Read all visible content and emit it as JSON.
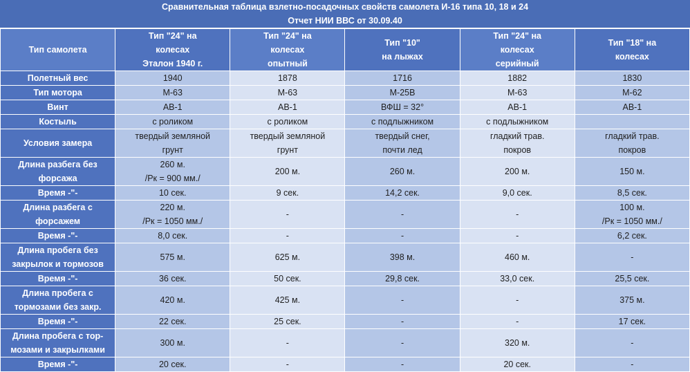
{
  "title": "Сравнительная таблица взлетно-посадочных свойств самолета И-16 типа 10, 18 и 24",
  "subtitle": "Отчет НИИ ВВС от 30.09.40",
  "table": {
    "header": [
      "Тип самолета",
      "Тип \"24\" на\nколесах\nЭталон 1940 г.",
      "Тип \"24\" на\nколесах\nопытный",
      "Тип \"10\"\nна лыжах",
      "Тип \"24\" на\nколесах\nсерийный",
      "Тип \"18\" на\nколесах"
    ],
    "rows": [
      [
        "Полетный вес",
        "1940",
        "1878",
        "1716",
        "1882",
        "1830"
      ],
      [
        "Тип мотора",
        "М-63",
        "М-63",
        "М-25В",
        "М-63",
        "М-62"
      ],
      [
        "Винт",
        "АВ-1",
        "АВ-1",
        "ВФШ = 32°",
        "АВ-1",
        "АВ-1"
      ],
      [
        "Костыль",
        "с роликом",
        "с роликом",
        "с подлыжником",
        "с подлыжником",
        null
      ],
      [
        "Условия замера",
        "твердый земляной\nгрунт",
        "твердый земляной\nгрунт",
        "твердый снег,\nпочти лед",
        "гладкий трав.\nпокров",
        "гладкий трав.\nпокров"
      ],
      [
        "Длина разбега без\nфорсажа",
        "260 м.\n/Рк = 900 мм./",
        "200 м.",
        "260 м.",
        "200 м.",
        "150 м."
      ],
      [
        "Время -\"-",
        "10 сек.",
        "9 сек.",
        "14,2 сек.",
        "9,0 сек.",
        "8,5 сек."
      ],
      [
        "Длина разбега с\nфорсажем",
        "220 м.\n/Рк = 1050 мм./",
        "-",
        "-",
        "-",
        "100 м.\n/Рк = 1050 мм./"
      ],
      [
        "Время -\"-",
        "8,0 сек.",
        "-",
        "-",
        "-",
        "6,2 сек."
      ],
      [
        "Длина пробега без\nзакрылок и тормозов",
        "575 м.",
        "625 м.",
        "398 м.",
        "460 м.",
        "-"
      ],
      [
        "Время -\"-",
        "36 сек.",
        "50 сек.",
        "29,8 сек.",
        "33,0 сек.",
        "25,5 сек."
      ],
      [
        "Длина пробега с\nтормозами без закр.",
        "420 м.",
        "425 м.",
        "-",
        "-",
        "375 м."
      ],
      [
        "Время -\"-",
        "22 сек.",
        "25 сек.",
        "-",
        "-",
        "17 сек."
      ],
      [
        "Длина пробега с тор-\nмозами и закрылками",
        "300 м.",
        "-",
        "-",
        "320 м.",
        "-"
      ],
      [
        "Время -\"-",
        "20 сек.",
        "-",
        "-",
        "20 сек.",
        "-"
      ]
    ]
  }
}
